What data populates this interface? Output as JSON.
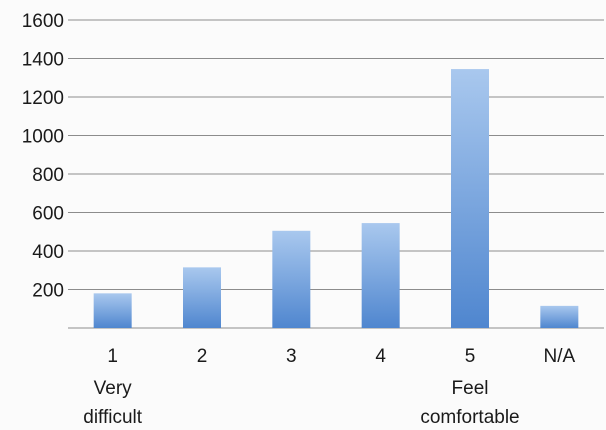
{
  "chart_data": {
    "type": "bar",
    "title": "",
    "xlabel": "",
    "ylabel": "",
    "ylim": [
      0,
      1600
    ],
    "yticks": [
      200,
      400,
      600,
      800,
      1000,
      1200,
      1400,
      1600
    ],
    "grid": true,
    "categories": [
      "1",
      "2",
      "3",
      "4",
      "5",
      "N/A"
    ],
    "values": [
      180,
      315,
      505,
      545,
      1345,
      115
    ],
    "category_sublabels": [
      {
        "category": "1",
        "lines": [
          "Very",
          "difficult"
        ]
      },
      {
        "category": "5",
        "lines": [
          "Feel",
          "comfortable"
        ]
      }
    ],
    "colors": {
      "bar_light": "#a9c8ee",
      "bar_dark": "#4f86cf",
      "grid": "#8c8c8c",
      "text": "#1a1a1a"
    }
  }
}
